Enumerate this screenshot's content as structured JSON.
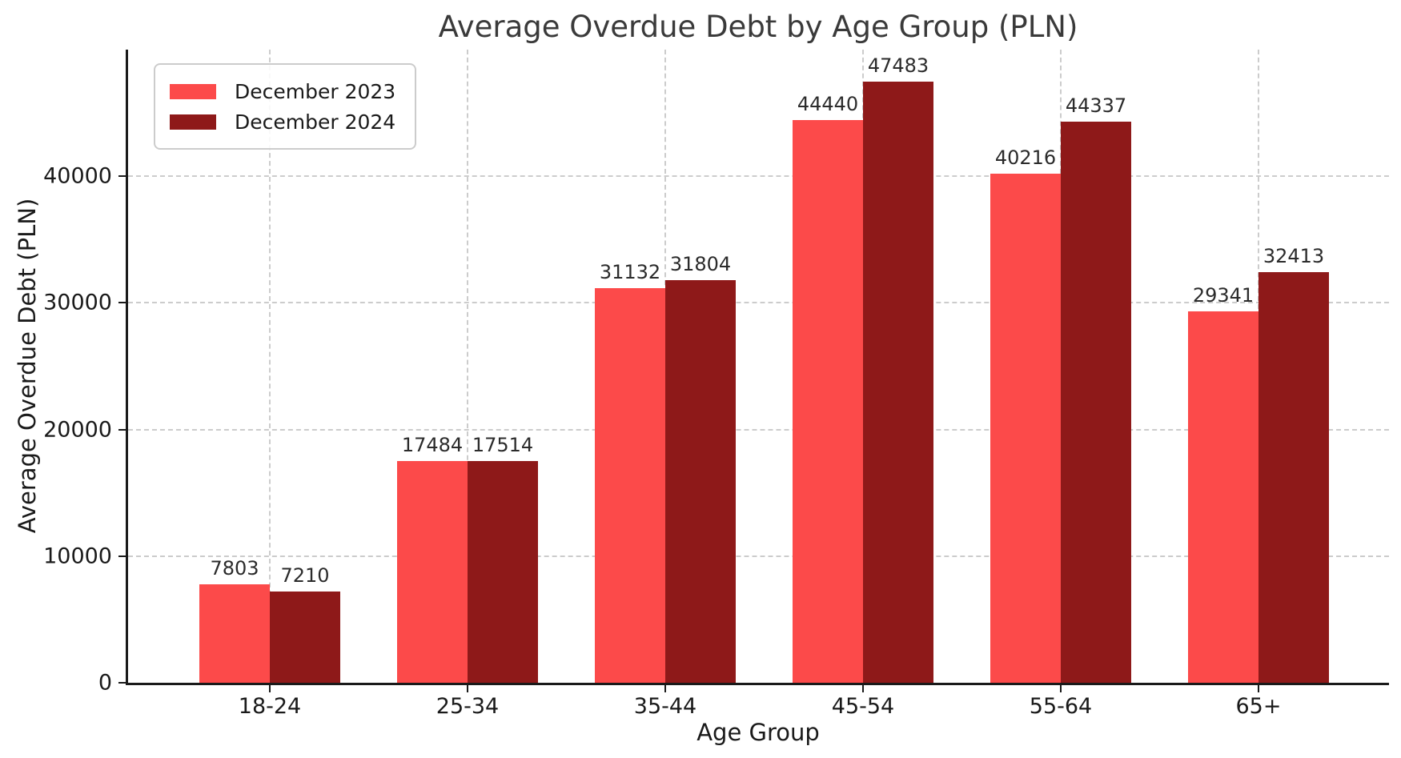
{
  "chart_data": {
    "type": "bar",
    "title": "Average Overdue Debt by Age Group (PLN)",
    "xlabel": "Age Group",
    "ylabel": "Average Overdue Debt (PLN)",
    "categories": [
      "18-24",
      "25-34",
      "35-44",
      "45-54",
      "55-64",
      "65+"
    ],
    "series": [
      {
        "name": "December 2023",
        "color": "#FC4A4A",
        "values": [
          7803,
          17484,
          31132,
          44440,
          40216,
          29341
        ]
      },
      {
        "name": "December 2024",
        "color": "#8E1919",
        "values": [
          7210,
          17514,
          31804,
          47483,
          44337,
          32413
        ]
      }
    ],
    "yticks": [
      0,
      10000,
      20000,
      30000,
      40000
    ],
    "ylim": [
      0,
      50000
    ],
    "grid": "dashed",
    "grid_color": "#cccccc",
    "legend_position": "upper-left",
    "value_labels": true,
    "background": "#ffffff"
  }
}
